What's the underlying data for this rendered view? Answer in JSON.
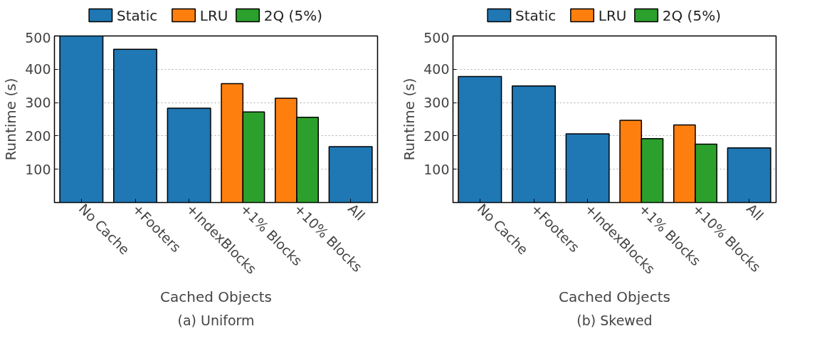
{
  "chart_data": [
    {
      "type": "bar",
      "xlabel": "Cached Objects",
      "ylabel": "Runtime (s)",
      "annotations": [
        "(a) Uniform"
      ],
      "categories": [
        "No Cache",
        "+Footers",
        "+IndexBlocks",
        "+1% Blocks",
        "+10% Blocks",
        "All"
      ],
      "ylim": [
        0,
        500
      ],
      "yticks": [
        100,
        200,
        300,
        400,
        500
      ],
      "grid": "y",
      "legend": "top",
      "series": [
        {
          "name": "Static",
          "color": "#1f77b4",
          "values": [
            500,
            460,
            283,
            null,
            null,
            168
          ]
        },
        {
          "name": "LRU",
          "color": "#ff7f0e",
          "values": [
            null,
            null,
            null,
            357,
            313,
            null
          ]
        },
        {
          "name": "2Q (5%)",
          "color": "#2ca02c",
          "values": [
            null,
            null,
            null,
            272,
            256,
            null
          ]
        }
      ]
    },
    {
      "type": "bar",
      "xlabel": "Cached Objects",
      "ylabel": "Runtime (s)",
      "annotations": [
        "(b) Skewed"
      ],
      "categories": [
        "No Cache",
        "+Footers",
        "+IndexBlocks",
        "+1% Blocks",
        "+10% Blocks",
        "All"
      ],
      "ylim": [
        0,
        500
      ],
      "yticks": [
        100,
        200,
        300,
        400,
        500
      ],
      "grid": "y",
      "legend": "top",
      "series": [
        {
          "name": "Static",
          "color": "#1f77b4",
          "values": [
            378,
            350,
            206,
            null,
            null,
            164
          ]
        },
        {
          "name": "LRU",
          "color": "#ff7f0e",
          "values": [
            null,
            null,
            null,
            247,
            233,
            null
          ]
        },
        {
          "name": "2Q (5%)",
          "color": "#2ca02c",
          "values": [
            null,
            null,
            null,
            192,
            175,
            null
          ]
        }
      ]
    }
  ]
}
